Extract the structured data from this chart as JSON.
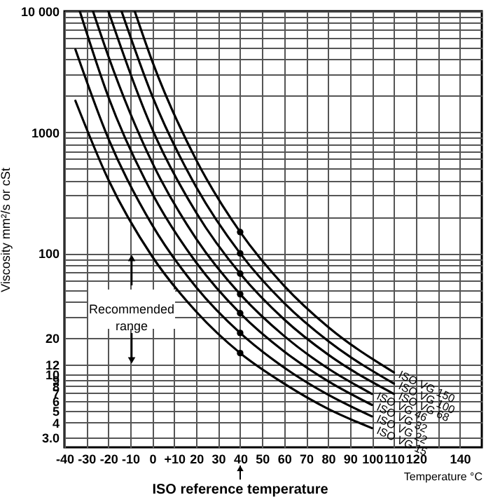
{
  "chart_data": {
    "type": "line",
    "xlabel": "Temperature °C",
    "ylabel": "Viscosity mm²/s or cSt",
    "xlim": [
      -40,
      150
    ],
    "ylim": [
      2.5,
      10000
    ],
    "log": "y",
    "xticks": [
      -40,
      -30,
      -20,
      -10,
      0,
      {
        "value": 10,
        "label": "+10"
      },
      20,
      30,
      40,
      50,
      60,
      70,
      80,
      90,
      100,
      110,
      120,
      {
        "value": 130,
        "label": null
      },
      140
    ],
    "yticks": [
      {
        "value": 3,
        "label": "3.0"
      },
      4,
      5,
      6,
      7,
      8,
      9,
      10,
      12,
      20,
      {
        "value": 30,
        "label": null
      },
      {
        "value": 40,
        "label": null
      },
      {
        "value": 50,
        "label": null
      },
      {
        "value": 60,
        "label": null
      },
      {
        "value": 70,
        "label": null
      },
      {
        "value": 80,
        "label": null
      },
      {
        "value": 90,
        "label": null
      },
      100,
      {
        "value": 200,
        "label": null
      },
      {
        "value": 300,
        "label": null
      },
      {
        "value": 400,
        "label": null
      },
      {
        "value": 500,
        "label": null
      },
      {
        "value": 600,
        "label": null
      },
      {
        "value": 700,
        "label": null
      },
      {
        "value": 800,
        "label": null
      },
      {
        "value": 900,
        "label": null
      },
      1000,
      {
        "value": 2000,
        "label": null
      },
      {
        "value": 3000,
        "label": null
      },
      {
        "value": 4000,
        "label": null
      },
      {
        "value": 5000,
        "label": null
      },
      {
        "value": 6000,
        "label": null
      },
      {
        "value": 7000,
        "label": null
      },
      {
        "value": 8000,
        "label": null
      },
      {
        "value": 9000,
        "label": null
      },
      {
        "value": 10000,
        "label": "10 000"
      }
    ],
    "grid": true,
    "series": [
      {
        "name": "ISO VG 15",
        "color": "#000000",
        "x": [
          -35,
          -20,
          0,
          20,
          40,
          60,
          80,
          100
        ],
        "values": [
          1820,
          406,
          94,
          33,
          15,
          8.4,
          5.2,
          3.6
        ]
      },
      {
        "name": "ISO VG 22",
        "color": "#000000",
        "x": [
          -35,
          -20,
          0,
          20,
          40,
          60,
          80,
          100
        ],
        "values": [
          4830,
          887,
          171,
          52.5,
          22,
          11.4,
          6.8,
          4.5
        ]
      },
      {
        "name": "ISO VG 32",
        "color": "#000000",
        "x": [
          -33,
          -20,
          0,
          20,
          40,
          60,
          80,
          100
        ],
        "values": [
          10000,
          1960,
          311,
          84,
          32,
          15.5,
          8.8,
          5.6
        ]
      },
      {
        "name": "ISO VG 46",
        "color": "#000000",
        "x": [
          -27,
          -20,
          0,
          20,
          40,
          60,
          80,
          100
        ],
        "values": [
          10000,
          4250,
          560,
          132,
          46,
          20.8,
          11.2,
          6.9
        ]
      },
      {
        "name": "ISO VG 68",
        "color": "#000000",
        "x": [
          -20,
          0,
          20,
          40,
          60,
          80,
          110
        ],
        "values": [
          10000,
          1060,
          217,
          68,
          28.5,
          14.6,
          6.9
        ]
      },
      {
        "name": "ISO VG 100",
        "color": "#000000",
        "x": [
          -14,
          0,
          20,
          40,
          60,
          80,
          110
        ],
        "values": [
          10000,
          1990,
          353,
          100,
          38.9,
          18.9,
          8.4
        ]
      },
      {
        "name": "ISO VG 150",
        "color": "#000000",
        "x": [
          -8,
          0,
          20,
          40,
          60,
          80,
          110
        ],
        "values": [
          10000,
          3850,
          591,
          150,
          54,
          24.7,
          10.4
        ]
      },
      {
        "type": "scatter",
        "marker": "circle",
        "color": "#000000",
        "x": [
          40,
          40,
          40,
          40,
          40,
          40,
          40
        ],
        "values": [
          15,
          22,
          32,
          46,
          68,
          100,
          150
        ]
      }
    ],
    "annotations": [
      "Recommended range",
      "ISO reference temperature"
    ]
  }
}
